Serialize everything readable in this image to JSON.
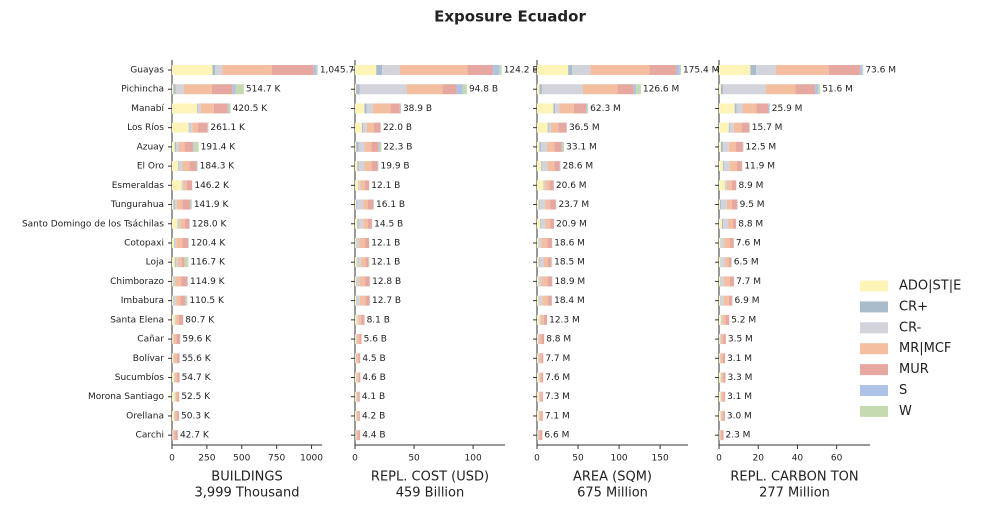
{
  "title": "Exposure Ecuador",
  "chart_data": [
    {
      "type": "bar",
      "orientation": "horizontal",
      "xlabel": "BUILDINGS",
      "xlabel_sub": "3,999 Thousand",
      "xlim": [
        0,
        1075
      ],
      "xticks": [
        0,
        250,
        500,
        750,
        1000
      ],
      "categories": [
        "Guayas",
        "Pichincha",
        "Manabí",
        "Los Ríos",
        "Azuay",
        "El Oro",
        "Esmeraldas",
        "Tungurahua",
        "Santo Domingo de los Tsáchilas",
        "Cotopaxi",
        "Loja",
        "Chimborazo",
        "Imbabura",
        "Santa Elena",
        "Cañar",
        "Bolívar",
        "Sucumbíos",
        "Morona Santiago",
        "Orellana",
        "Carchi"
      ],
      "bar_labels": [
        "1,045.7 K",
        "514.7 K",
        "420.5 K",
        "261.1 K",
        "191.4 K",
        "184.3 K",
        "146.2 K",
        "141.9 K",
        "128.0 K",
        "120.4 K",
        "116.7 K",
        "114.9 K",
        "110.5 K",
        "80.7 K",
        "59.6 K",
        "55.6 K",
        "54.7 K",
        "52.5 K",
        "50.3 K",
        "42.7 K"
      ],
      "series": [
        {
          "name": "ADO|ST|E",
          "color": "#fff4b8",
          "values": [
            290,
            10,
            180,
            120,
            20,
            45,
            70,
            10,
            40,
            15,
            20,
            10,
            10,
            20,
            5,
            8,
            15,
            20,
            15,
            3
          ]
        },
        {
          "name": "CR+",
          "color": "#a8bccb",
          "values": [
            20,
            15,
            5,
            5,
            10,
            5,
            2,
            10,
            3,
            5,
            5,
            5,
            5,
            2,
            2,
            2,
            2,
            2,
            2,
            2
          ]
        },
        {
          "name": "CR-",
          "color": "#d2d3db",
          "values": [
            50,
            60,
            20,
            20,
            20,
            25,
            10,
            15,
            15,
            10,
            15,
            10,
            15,
            8,
            5,
            5,
            5,
            5,
            5,
            5
          ]
        },
        {
          "name": "MR|MCF",
          "color": "#f4bea0",
          "values": [
            355,
            200,
            95,
            40,
            40,
            50,
            24,
            40,
            35,
            45,
            30,
            40,
            30,
            20,
            20,
            20,
            15,
            12,
            14,
            12
          ]
        },
        {
          "name": "MUR",
          "color": "#e8a8a2",
          "values": [
            300,
            150,
            100,
            70,
            60,
            50,
            38,
            55,
            30,
            40,
            20,
            45,
            35,
            30,
            25,
            18,
            17,
            12,
            14,
            18
          ]
        },
        {
          "name": "S",
          "color": "#aec1e7",
          "values": [
            20,
            20,
            5,
            2,
            5,
            4,
            1,
            5,
            2,
            2,
            2,
            2,
            5,
            0,
            1,
            1,
            0,
            0,
            0,
            1
          ]
        },
        {
          "name": "W",
          "color": "#c6dab2",
          "values": [
            10,
            60,
            15,
            4,
            36,
            5,
            1,
            7,
            3,
            3,
            25,
            3,
            10,
            1,
            2,
            2,
            1,
            1.5,
            0.3,
            1.7
          ]
        }
      ]
    },
    {
      "type": "bar",
      "orientation": "horizontal",
      "xlabel": "REPL. COST (USD)",
      "xlabel_sub": "459 Billion",
      "xlim": [
        0,
        127
      ],
      "xticks": [
        0,
        50,
        100
      ],
      "bar_labels": [
        "124.2 B",
        "94.8 B",
        "38.9 B",
        "22.0 B",
        "22.3 B",
        "19.9 B",
        "12.1 B",
        "16.1 B",
        "14.5 B",
        "12.1 B",
        "12.1 B",
        "12.8 B",
        "12.7 B",
        "8.1 B",
        "5.6 B",
        "4.5 B",
        "4.6 B",
        "4.1 B",
        "4.2 B",
        "4.4 B"
      ],
      "series": [
        {
          "values": [
            18,
            1,
            8,
            6,
            1,
            2,
            3,
            1,
            2,
            1,
            1.5,
            1,
            1,
            1.5,
            0.5,
            0.5,
            1,
            1,
            1,
            0.3
          ]
        },
        {
          "values": [
            5,
            3,
            2,
            1,
            2,
            1,
            0.5,
            1,
            1,
            0.5,
            0.5,
            0.5,
            0.5,
            0.3,
            0.2,
            0.2,
            0.2,
            0.2,
            0.2,
            0.2
          ]
        },
        {
          "values": [
            15,
            40,
            5,
            3,
            5,
            5,
            1,
            5,
            4,
            2,
            3,
            2,
            2.5,
            1,
            0.8,
            0.6,
            0.6,
            0.5,
            0.5,
            0.6
          ]
        },
        {
          "values": [
            57,
            30,
            15,
            6,
            6,
            6,
            4,
            4,
            4,
            5,
            4,
            5,
            5,
            2.5,
            2,
            1.7,
            1.4,
            1.2,
            1.3,
            1.5
          ]
        },
        {
          "values": [
            22,
            12,
            8,
            5.5,
            6,
            5,
            3.4,
            4.5,
            3.3,
            3.4,
            2.5,
            4,
            3.3,
            2.7,
            2,
            1.4,
            1.3,
            1.1,
            1.1,
            1.7
          ]
        },
        {
          "values": [
            5,
            5,
            0.5,
            0.3,
            1,
            0.5,
            0.1,
            0.3,
            0.1,
            0.1,
            0.1,
            0.1,
            0.2,
            0,
            0,
            0,
            0,
            0,
            0,
            0
          ]
        },
        {
          "values": [
            2.2,
            3.8,
            0.4,
            0.2,
            1.3,
            0.4,
            0.1,
            0.3,
            0.1,
            0.1,
            0.5,
            0.2,
            0.2,
            0.1,
            0.1,
            0.1,
            0.1,
            0.1,
            0.1,
            0.1
          ]
        }
      ]
    },
    {
      "type": "bar",
      "orientation": "horizontal",
      "xlabel": "AREA (SQM)",
      "xlabel_sub": "675 Million",
      "xlim": [
        0,
        184
      ],
      "xticks": [
        0,
        50,
        100,
        150
      ],
      "bar_labels": [
        "175.4 M",
        "126.6 M",
        "62.3 M",
        "36.5 M",
        "33.1 M",
        "28.6 M",
        "20.6 M",
        "23.7 M",
        "20.9 M",
        "18.6 M",
        "18.5 M",
        "18.9 M",
        "18.4 M",
        "12.3 M",
        "8.8 M",
        "7.7 M",
        "7.6 M",
        "7.3 M",
        "7.1 M",
        "6.6 M"
      ],
      "series": [
        {
          "values": [
            38,
            3,
            20,
            13,
            3,
            5,
            8,
            2,
            4,
            2,
            2,
            2,
            2,
            3,
            1,
            1,
            2,
            2,
            2,
            0.5
          ]
        },
        {
          "values": [
            5,
            3,
            2,
            1,
            2,
            1,
            0.5,
            1,
            1,
            0.5,
            1,
            0.5,
            0.5,
            0.3,
            0.2,
            0.2,
            0.2,
            0.2,
            0.2,
            0.2
          ]
        },
        {
          "values": [
            22,
            50,
            5,
            3,
            7,
            7,
            1.5,
            7,
            5,
            3,
            5,
            3,
            4,
            1.5,
            1.2,
            1,
            1,
            0.8,
            0.8,
            1
          ]
        },
        {
          "values": [
            72,
            42,
            18,
            9,
            9,
            8,
            5,
            6,
            6,
            7,
            5,
            7,
            7,
            3.5,
            3,
            3,
            2.2,
            2.2,
            2,
            2
          ]
        },
        {
          "values": [
            33,
            20,
            15,
            10,
            9,
            6.6,
            5.4,
            7,
            4.7,
            5.9,
            4.4,
            6.1,
            4.5,
            3.9,
            3.3,
            2.4,
            2.1,
            2,
            2,
            2.8
          ]
        },
        {
          "values": [
            4,
            3,
            1,
            0.3,
            1,
            0.5,
            0.1,
            0.4,
            0.1,
            0.1,
            0.1,
            0.1,
            0.2,
            0,
            0,
            0,
            0,
            0,
            0,
            0
          ]
        },
        {
          "values": [
            1.4,
            5.6,
            1.3,
            0.2,
            2.1,
            0.5,
            0.1,
            0.3,
            0.1,
            0.1,
            1,
            0.2,
            0.2,
            0.1,
            0.1,
            0.1,
            0.1,
            0.1,
            0.1,
            0.1
          ]
        }
      ]
    },
    {
      "type": "bar",
      "orientation": "horizontal",
      "xlabel": "REPL. CARBON TON",
      "xlabel_sub": "277 Million",
      "xlim": [
        0,
        77
      ],
      "xticks": [
        0,
        20,
        40,
        60
      ],
      "bar_labels": [
        "73.6 M",
        "51.6 M",
        "25.9 M",
        "15.7 M",
        "12.5 M",
        "11.9 M",
        "8.9 M",
        "9.5 M",
        "8.8 M",
        "7.6 M",
        "6.5 M",
        "7.7 M",
        "6.9 M",
        "5.2 M",
        "3.5 M",
        "3.1 M",
        "3.3 M",
        "3.1 M",
        "3.0 M",
        "2.3 M"
      ],
      "series": [
        {
          "values": [
            16,
            1,
            8,
            5,
            1,
            2,
            3,
            0.5,
            1.5,
            0.8,
            0.8,
            0.7,
            0.7,
            1,
            0.3,
            0.3,
            0.8,
            0.8,
            0.8,
            0.2
          ]
        },
        {
          "values": [
            3,
            1,
            1,
            0.5,
            1,
            0.5,
            0.2,
            0.5,
            0.5,
            0.3,
            0.3,
            0.3,
            0.3,
            0.2,
            0.1,
            0.1,
            0.1,
            0.1,
            0.1,
            0.1
          ]
        },
        {
          "values": [
            10,
            22,
            3,
            2,
            3,
            3,
            0.8,
            3,
            2.5,
            1.5,
            2,
            1.5,
            1.5,
            0.5,
            0.5,
            0.4,
            0.4,
            0.3,
            0.3,
            0.3
          ]
        },
        {
          "values": [
            27,
            15,
            7,
            4,
            3.5,
            3.5,
            2.5,
            2.5,
            2.5,
            3,
            2,
            3,
            2.5,
            1.5,
            1.2,
            1.2,
            1,
            1,
            0.9,
            0.7
          ]
        },
        {
          "values": [
            16,
            10,
            6,
            4,
            3.5,
            2.7,
            2.3,
            2.8,
            1.7,
            1.9,
            1.2,
            2.1,
            1.8,
            2,
            1.4,
            1.1,
            1,
            0.9,
            0.9,
            1
          ]
        },
        {
          "values": [
            1,
            1.5,
            0.5,
            0.1,
            0.2,
            0.1,
            0.05,
            0.1,
            0.05,
            0.05,
            0.05,
            0.05,
            0.05,
            0,
            0,
            0,
            0,
            0,
            0,
            0
          ]
        },
        {
          "values": [
            0.6,
            1.1,
            0.4,
            0.1,
            0.3,
            0.1,
            0.05,
            0.1,
            0.05,
            0.05,
            0.15,
            0.05,
            0.05,
            0,
            0,
            0,
            0,
            0,
            0,
            0
          ]
        }
      ]
    }
  ]
}
